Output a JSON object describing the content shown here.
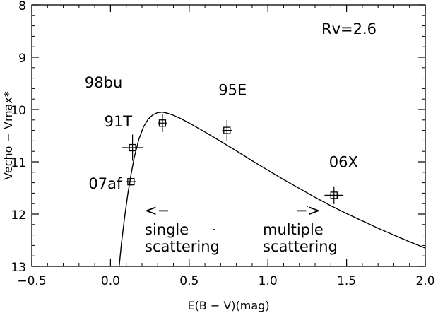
{
  "chart_data": {
    "type": "scatter",
    "xlabel": "E(B − V)(mag)",
    "ylabel": "Vecho − Vmax*",
    "xlim": [
      -0.5,
      2.0
    ],
    "ylim": [
      13,
      8
    ],
    "y_inverted": true,
    "grid": false,
    "x_ticks": [
      -0.5,
      0.0,
      0.5,
      1.0,
      1.5,
      2.0
    ],
    "x_tick_labels": [
      "−0.5",
      "0.0",
      "0.5",
      "1.0",
      "1.5",
      "2.0"
    ],
    "y_ticks": [
      8,
      9,
      10,
      11,
      12,
      13
    ],
    "y_tick_labels": [
      "8",
      "9",
      "10",
      "11",
      "12",
      "13"
    ],
    "points": [
      {
        "label": "07af",
        "x": 0.13,
        "y": 11.38,
        "x_err": 0.03,
        "y_err": 0.08
      },
      {
        "label": "91T",
        "x": 0.14,
        "y": 10.73,
        "x_err": 0.07,
        "y_err": 0.25
      },
      {
        "label": "98bu",
        "x": 0.33,
        "y": 10.26,
        "x_err": 0.03,
        "y_err": 0.17
      },
      {
        "label": "95E",
        "x": 0.74,
        "y": 10.4,
        "x_err": 0.03,
        "y_err": 0.2
      },
      {
        "label": "06X",
        "x": 1.42,
        "y": 11.64,
        "x_err": 0.06,
        "y_err": 0.17
      }
    ],
    "curve": {
      "x": [
        0.055,
        0.07,
        0.09,
        0.11,
        0.13,
        0.15,
        0.18,
        0.21,
        0.24,
        0.27,
        0.3,
        0.33,
        0.36,
        0.4,
        0.45,
        0.5,
        0.6,
        0.7,
        0.8,
        0.9,
        1.0,
        1.1,
        1.2,
        1.3,
        1.4,
        1.5,
        1.6,
        1.7,
        1.8,
        1.9,
        2.0
      ],
      "y": [
        13.0,
        12.55,
        12.05,
        11.62,
        11.25,
        10.93,
        10.57,
        10.33,
        10.18,
        10.1,
        10.06,
        10.05,
        10.07,
        10.11,
        10.18,
        10.26,
        10.43,
        10.61,
        10.79,
        10.98,
        11.16,
        11.34,
        11.51,
        11.68,
        11.84,
        11.99,
        12.13,
        12.27,
        12.4,
        12.53,
        12.65
      ]
    },
    "annotations": {
      "rv": "Rv=2.6",
      "left_arrow": "<−",
      "left_text_1": "single",
      "left_text_2": "scattering",
      "right_arrow": "−>",
      "right_text_1": "multiple",
      "right_text_2": "scattering"
    }
  }
}
